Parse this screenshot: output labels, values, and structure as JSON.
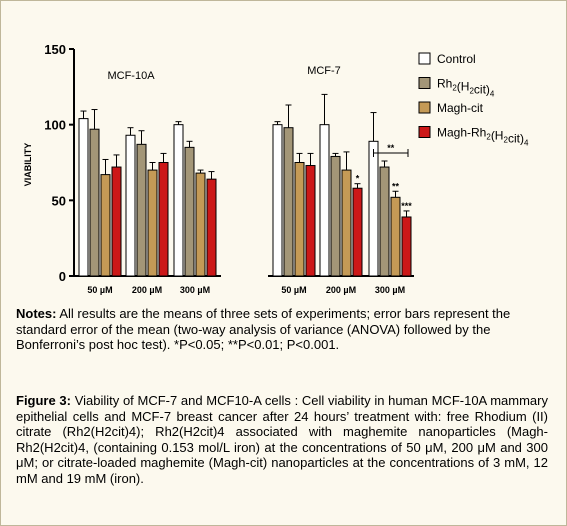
{
  "chart_data": {
    "type": "bar",
    "ylabel": "VIABILITY",
    "ylim": [
      0,
      150
    ],
    "yticks": [
      "0",
      "50",
      "100",
      "150"
    ],
    "groups": [
      {
        "label": "MCF-10A",
        "categories": [
          "50 µM",
          "200 µM",
          "300 µM"
        ]
      },
      {
        "label": "MCF-7",
        "categories": [
          "50 µM",
          "200 µM",
          "300 µM"
        ]
      }
    ],
    "series": [
      {
        "name": "Control",
        "color": "#ffffff",
        "values": [
          104,
          93,
          100,
          100,
          100,
          89
        ],
        "errors": [
          5,
          5,
          2,
          2,
          20,
          19
        ]
      },
      {
        "name": "Rh2(H2cit)4",
        "color": "#a39677",
        "values": [
          97,
          87,
          85,
          98,
          79,
          72
        ],
        "errors": [
          13,
          9,
          4,
          15,
          2,
          4
        ]
      },
      {
        "name": "Magh-cit",
        "color": "#c49a56",
        "values": [
          67,
          70,
          68,
          75,
          70,
          52
        ],
        "errors": [
          10,
          5,
          2,
          6,
          12,
          4
        ]
      },
      {
        "name": "Magh-Rh2(H2cit)4",
        "color": "#cc1818",
        "values": [
          72,
          75,
          64,
          73,
          58,
          39
        ],
        "errors": [
          8,
          6,
          5,
          8,
          3,
          4
        ]
      }
    ],
    "annotations": [
      {
        "text": "*",
        "group": 1,
        "category": 1,
        "series": 3
      },
      {
        "text": "**",
        "group": 1,
        "category": 2,
        "series": 2
      },
      {
        "text": "***",
        "group": 1,
        "category": 2,
        "series": 3
      },
      {
        "text": "**",
        "group": 1,
        "category": 2,
        "series": 0,
        "bracket": true
      }
    ],
    "legend_position": "right"
  },
  "notes": {
    "label": "Notes:",
    "text": "All results are the means of three sets of experiments; error bars represent the standard error of the mean (two-way analysis of variance (ANOVA) followed by the Bonferroni’s post hoc test). *P<0.05; **P<0.01; P<0.001."
  },
  "caption": {
    "label": "Figure 3:",
    "text": "Viability of MCF-7 and MCF10-A cells : Cell viability in human MCF-10A mammary epithelial cells and MCF-7 breast cancer after 24 hours’ treatment with: free Rhodium (II) citrate (Rh2(H2cit)4); Rh2(H2cit)4 associated with maghemite nanoparticles (Magh-Rh2(H2cit)4, (containing 0.153 mol/L iron) at the concentrations of 50 μM, 200 μM and 300 μM; or citrate-loaded maghemite (Magh-cit) nanoparticles at the concentrations of 3 mM, 12 mM and 19 mM (iron)."
  }
}
